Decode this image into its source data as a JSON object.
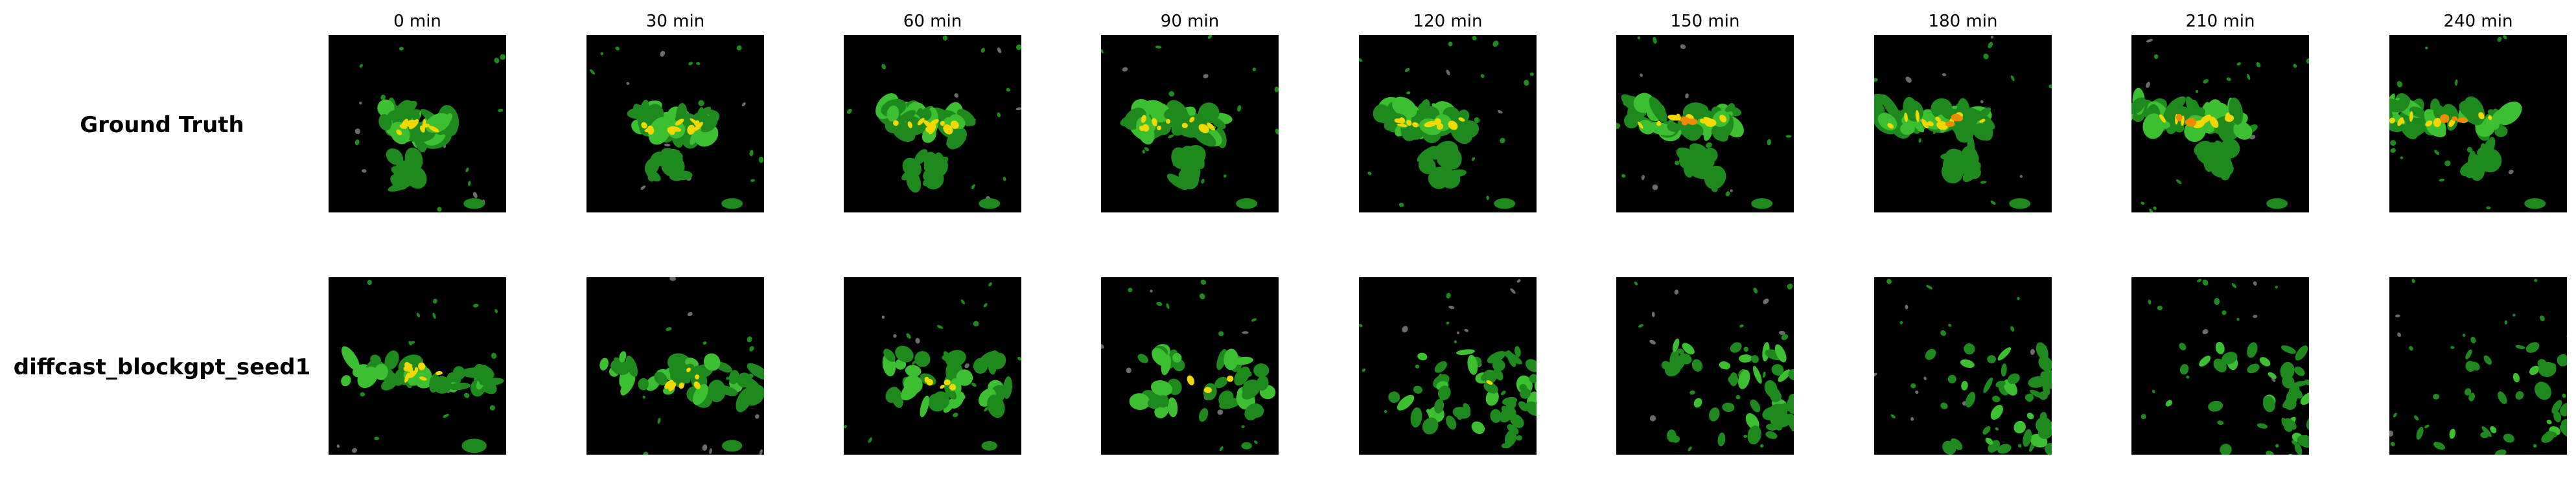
{
  "columns": [
    "0 min",
    "30 min",
    "60 min",
    "90 min",
    "120 min",
    "150 min",
    "180 min",
    "210 min",
    "240 min"
  ],
  "rows": [
    {
      "label": "Ground Truth"
    },
    {
      "label": "diffcast_blockgpt_seed1"
    }
  ],
  "colors": {
    "background": "#000000",
    "rain_light": "#1e8a1e",
    "rain_moderate": "#3cbf30",
    "rain_heavy": "#f0d800",
    "rain_intense": "#f08a00",
    "clutter": "#6b6b6b"
  }
}
